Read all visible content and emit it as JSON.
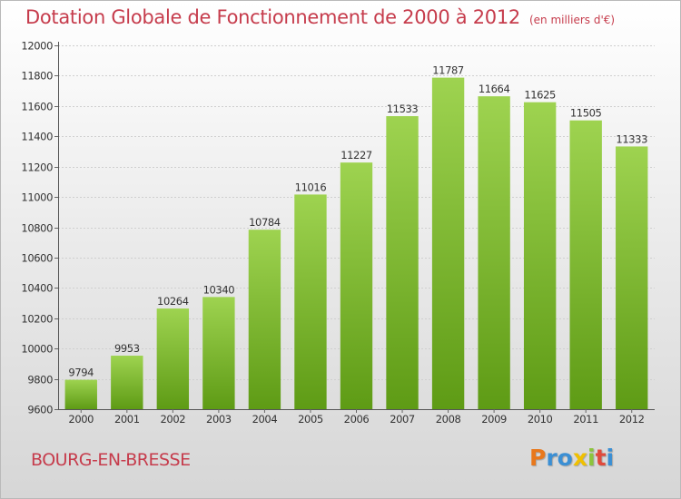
{
  "title": "Dotation Globale de Fonctionnement de 2000 à 2012",
  "subtitle": "(en milliers d'€)",
  "city": "BOURG-EN-BRESSE",
  "logo": {
    "letters": [
      "P",
      "r",
      "o",
      "x",
      "i",
      "t",
      "i"
    ],
    "colors": [
      "#e8781c",
      "#3b8fd4",
      "#3b8fd4",
      "#f0c000",
      "#8cc43c",
      "#e04a3c",
      "#3b8fd4"
    ]
  },
  "colors": {
    "bar_top": "#9ed350",
    "bar_bottom": "#5e9b15",
    "title": "#c63c4c",
    "grid": "#cfcfcf"
  },
  "chart_data": {
    "type": "bar",
    "title": "Dotation Globale de Fonctionnement de 2000 à 2012",
    "subtitle": "(en milliers d'€)",
    "xlabel": "",
    "ylabel": "",
    "categories": [
      "2000",
      "2001",
      "2002",
      "2003",
      "2004",
      "2005",
      "2006",
      "2007",
      "2008",
      "2009",
      "2010",
      "2011",
      "2012"
    ],
    "values": [
      9794,
      9953,
      10264,
      10340,
      10784,
      11016,
      11227,
      11533,
      11787,
      11664,
      11625,
      11505,
      11333
    ],
    "ylim": [
      9600,
      12000
    ],
    "yticks": [
      9600,
      9800,
      10000,
      10200,
      10400,
      10600,
      10800,
      11000,
      11200,
      11400,
      11600,
      11800,
      12000
    ],
    "grid": true,
    "data_labels": true
  }
}
